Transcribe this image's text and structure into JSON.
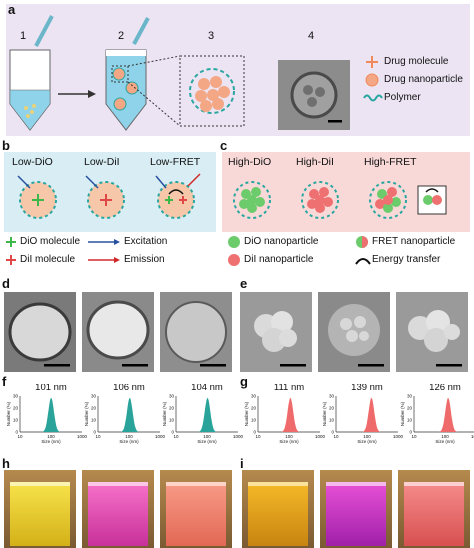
{
  "panel_labels": {
    "a": "a",
    "b": "b",
    "c": "c",
    "d": "d",
    "e": "e",
    "f": "f",
    "g": "g",
    "h": "h",
    "i": "i"
  },
  "panel_a": {
    "steps": [
      "1",
      "2",
      "3",
      "4"
    ],
    "legend": [
      {
        "label": "Drug molecule",
        "icon": "orange-cross-icon"
      },
      {
        "label": "Drug nanoparticle",
        "icon": "orange-sphere-icon"
      },
      {
        "label": "Polymer",
        "icon": "teal-wave-icon"
      }
    ]
  },
  "panel_b": {
    "titles": [
      "Low-DiO",
      "Low-DiI",
      "Low-FRET"
    ]
  },
  "panel_c": {
    "titles": [
      "High-DiO",
      "High-DiI",
      "High-FRET"
    ]
  },
  "legend_bottom": {
    "dio_molecule": "DiO molecule",
    "dii_molecule": "DiI molecule",
    "excitation": "Excitation",
    "emission": "Emission",
    "dio_nanoparticle": "DiO nanoparticle",
    "dii_nanoparticle": "DiI nanoparticle",
    "fret_nanoparticle": "FRET nanoparticle",
    "energy_transfer": "Energy transfer"
  },
  "colors": {
    "panel_a_bg": "#ece4f3",
    "panel_b_bg": "#d8eef4",
    "panel_c_bg": "#f8d9d8",
    "polymer": "#2aa6a0",
    "drug": "#f08a5d",
    "dio": "#3cb84a",
    "dii": "#e04848",
    "excitation": "#2850a0",
    "emission": "#d02828",
    "hist_f": "#2aa39a",
    "hist_g": "#ef6a6a"
  },
  "chart_data": [
    {
      "type": "bar",
      "panel": "f",
      "label": "101 nm",
      "peak": 101,
      "xlabel": "Size (nm)",
      "ylabel": "Number (%)",
      "xticks": [
        "10",
        "100",
        "1000"
      ],
      "yticks": [
        "0",
        "10",
        "20",
        "30"
      ]
    },
    {
      "type": "bar",
      "panel": "f",
      "label": "106 nm",
      "peak": 106,
      "xlabel": "Size (nm)",
      "ylabel": "Number (%)",
      "xticks": [
        "10",
        "100",
        "1000"
      ],
      "yticks": [
        "0",
        "10",
        "20",
        "30"
      ]
    },
    {
      "type": "bar",
      "panel": "f",
      "label": "104 nm",
      "peak": 104,
      "xlabel": "Size (nm)",
      "ylabel": "Number (%)",
      "xticks": [
        "10",
        "100",
        "1000"
      ],
      "yticks": [
        "0",
        "10",
        "20",
        "30"
      ]
    },
    {
      "type": "bar",
      "panel": "g",
      "label": "111 nm",
      "peak": 111,
      "xlabel": "Size (nm)",
      "ylabel": "Number (%)",
      "xticks": [
        "10",
        "100",
        "1000"
      ],
      "yticks": [
        "0",
        "10",
        "20",
        "30"
      ]
    },
    {
      "type": "bar",
      "panel": "g",
      "label": "139 nm",
      "peak": 139,
      "xlabel": "Size (nm)",
      "ylabel": "Number (%)",
      "xticks": [
        "10",
        "100",
        "1000"
      ],
      "yticks": [
        "0",
        "10",
        "20",
        "30"
      ]
    },
    {
      "type": "bar",
      "panel": "g",
      "label": "126 nm",
      "peak": 126,
      "xlabel": "Size (nm)",
      "ylabel": "Number (%)",
      "xticks": [
        "10",
        "100",
        "1000"
      ],
      "yticks": [
        "0",
        "10",
        "20",
        "30"
      ]
    }
  ]
}
